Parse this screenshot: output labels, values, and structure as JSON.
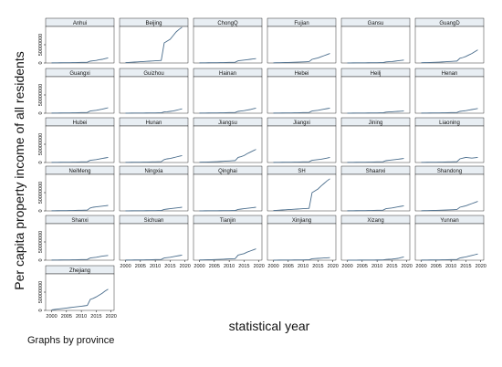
{
  "chart_data": {
    "type": "line",
    "title": "",
    "xlabel": "statistical year",
    "ylabel": "Per capita property income of all residents",
    "note": "Graphs by province",
    "xlim": [
      1998,
      2021
    ],
    "ylim": [
      0,
      100000000
    ],
    "x_ticks": [
      2000,
      2005,
      2010,
      2015,
      2020
    ],
    "y_ticks": [
      0,
      50000000
    ],
    "line_color": "#4a6d8c",
    "header_color": "#e8eef3",
    "x": [
      2000,
      2001,
      2002,
      2003,
      2004,
      2005,
      2006,
      2007,
      2008,
      2009,
      2010,
      2011,
      2012,
      2013,
      2014,
      2015,
      2016,
      2017,
      2018,
      2019
    ],
    "panels": [
      {
        "name": "Anhui",
        "values": [
          300000,
          400000,
          500000,
          600000,
          700000,
          800000,
          900000,
          1000000,
          1200000,
          1400000,
          1600000,
          1800000,
          2000000,
          5000000,
          6000000,
          7000000,
          9000000,
          10000000,
          12000000,
          14000000
        ]
      },
      {
        "name": "Beijing",
        "values": [
          1000000,
          1500000,
          2000000,
          2500000,
          3000000,
          3500000,
          4000000,
          4500000,
          5000000,
          5500000,
          6000000,
          6500000,
          7000000,
          55000000,
          60000000,
          65000000,
          75000000,
          85000000,
          92000000,
          98000000
        ]
      },
      {
        "name": "ChongQ",
        "values": [
          300000,
          400000,
          500000,
          600000,
          700000,
          800000,
          900000,
          1000000,
          1200000,
          1400000,
          1600000,
          1800000,
          2000000,
          6000000,
          7000000,
          8000000,
          9000000,
          10000000,
          11000000,
          12000000
        ]
      },
      {
        "name": "Fujian",
        "values": [
          500000,
          700000,
          900000,
          1100000,
          1300000,
          1500000,
          1800000,
          2100000,
          2400000,
          2700000,
          3000000,
          3400000,
          3800000,
          10000000,
          12000000,
          14000000,
          17000000,
          20000000,
          23000000,
          26000000
        ]
      },
      {
        "name": "Gansu",
        "values": [
          200000,
          250000,
          300000,
          350000,
          400000,
          450000,
          500000,
          600000,
          700000,
          800000,
          900000,
          1000000,
          1100000,
          3000000,
          3500000,
          4000000,
          5000000,
          6000000,
          7000000,
          8000000
        ]
      },
      {
        "name": "GuangD",
        "values": [
          800000,
          1000000,
          1200000,
          1400000,
          1700000,
          2000000,
          2400000,
          2800000,
          3300000,
          3800000,
          4300000,
          4800000,
          5300000,
          13000000,
          15000000,
          18000000,
          22000000,
          26000000,
          31000000,
          36000000
        ]
      },
      {
        "name": "Guangxi",
        "values": [
          300000,
          400000,
          500000,
          600000,
          700000,
          800000,
          900000,
          1000000,
          1200000,
          1400000,
          1600000,
          1800000,
          2000000,
          6000000,
          7000000,
          8000000,
          9500000,
          11000000,
          13000000,
          15000000
        ]
      },
      {
        "name": "Guizhou",
        "values": [
          200000,
          250000,
          300000,
          350000,
          400000,
          450000,
          500000,
          600000,
          700000,
          800000,
          900000,
          1000000,
          1100000,
          3500000,
          4000000,
          5000000,
          6000000,
          8000000,
          10000000,
          12000000
        ]
      },
      {
        "name": "Hainan",
        "values": [
          300000,
          400000,
          500000,
          600000,
          700000,
          800000,
          900000,
          1000000,
          1200000,
          1400000,
          1600000,
          1800000,
          2000000,
          5000000,
          6000000,
          7000000,
          8500000,
          10000000,
          12000000,
          14000000
        ]
      },
      {
        "name": "Hebei",
        "values": [
          300000,
          400000,
          500000,
          600000,
          700000,
          800000,
          900000,
          1000000,
          1200000,
          1400000,
          1600000,
          1800000,
          2000000,
          6000000,
          7000000,
          8000000,
          9500000,
          11000000,
          12500000,
          14000000
        ]
      },
      {
        "name": "Heilj",
        "values": [
          200000,
          250000,
          300000,
          350000,
          400000,
          450000,
          500000,
          600000,
          700000,
          800000,
          900000,
          1000000,
          1100000,
          3000000,
          3500000,
          4000000,
          4500000,
          5000000,
          5500000,
          6000000
        ]
      },
      {
        "name": "Henan",
        "values": [
          300000,
          400000,
          500000,
          600000,
          700000,
          800000,
          900000,
          1000000,
          1200000,
          1400000,
          1600000,
          1800000,
          2000000,
          5000000,
          6000000,
          7000000,
          8500000,
          10000000,
          11500000,
          13000000
        ]
      },
      {
        "name": "Hubei",
        "values": [
          300000,
          400000,
          500000,
          600000,
          700000,
          800000,
          900000,
          1000000,
          1200000,
          1400000,
          1600000,
          1800000,
          2000000,
          6000000,
          7000000,
          8000000,
          9500000,
          11000000,
          12500000,
          14000000
        ]
      },
      {
        "name": "Hunan",
        "values": [
          400000,
          500000,
          600000,
          700000,
          800000,
          900000,
          1000000,
          1200000,
          1400000,
          1600000,
          1800000,
          2000000,
          2300000,
          8000000,
          10000000,
          11000000,
          13000000,
          15000000,
          17000000,
          19000000
        ]
      },
      {
        "name": "Jiangsu",
        "values": [
          800000,
          1000000,
          1200000,
          1400000,
          1700000,
          2000000,
          2400000,
          2800000,
          3300000,
          3800000,
          4300000,
          4800000,
          5300000,
          14000000,
          16000000,
          19000000,
          24000000,
          28000000,
          32000000,
          36000000
        ]
      },
      {
        "name": "Jiangxi",
        "values": [
          300000,
          400000,
          500000,
          600000,
          700000,
          800000,
          900000,
          1000000,
          1200000,
          1400000,
          1600000,
          1800000,
          2000000,
          6000000,
          7000000,
          8000000,
          9000000,
          10500000,
          12000000,
          14000000
        ]
      },
      {
        "name": "Jining",
        "values": [
          300000,
          400000,
          500000,
          600000,
          700000,
          800000,
          900000,
          1000000,
          1200000,
          1400000,
          1600000,
          1800000,
          2000000,
          5000000,
          6000000,
          7000000,
          8000000,
          9000000,
          10000000,
          11000000
        ]
      },
      {
        "name": "Liaoning",
        "values": [
          400000,
          500000,
          600000,
          700000,
          800000,
          900000,
          1000000,
          1200000,
          1400000,
          1600000,
          1800000,
          2000000,
          2300000,
          10000000,
          12000000,
          14000000,
          13000000,
          12000000,
          13000000,
          14000000
        ]
      },
      {
        "name": "NeiMeng",
        "values": [
          400000,
          500000,
          600000,
          700000,
          800000,
          900000,
          1000000,
          1200000,
          1400000,
          1600000,
          1800000,
          2000000,
          2300000,
          8000000,
          10000000,
          11000000,
          12000000,
          13000000,
          14000000,
          15000000
        ]
      },
      {
        "name": "Ningxia",
        "values": [
          200000,
          250000,
          300000,
          350000,
          400000,
          450000,
          500000,
          600000,
          700000,
          800000,
          900000,
          1000000,
          1100000,
          4000000,
          5000000,
          6000000,
          7000000,
          8000000,
          9000000,
          10000000
        ]
      },
      {
        "name": "Qinghai",
        "values": [
          200000,
          250000,
          300000,
          350000,
          400000,
          450000,
          500000,
          600000,
          700000,
          800000,
          900000,
          1000000,
          1100000,
          4000000,
          5000000,
          6000000,
          7000000,
          8000000,
          9000000,
          10000000
        ]
      },
      {
        "name": "SH",
        "values": [
          1000000,
          1500000,
          2000000,
          2500000,
          3000000,
          3500000,
          4000000,
          4500000,
          5000000,
          5500000,
          6000000,
          6500000,
          7000000,
          50000000,
          55000000,
          60000000,
          68000000,
          75000000,
          82000000,
          88000000
        ]
      },
      {
        "name": "Shaanxi",
        "values": [
          300000,
          400000,
          500000,
          600000,
          700000,
          800000,
          900000,
          1000000,
          1200000,
          1400000,
          1600000,
          1800000,
          2000000,
          6000000,
          7000000,
          8000000,
          9500000,
          11000000,
          12500000,
          14000000
        ]
      },
      {
        "name": "Shandong",
        "values": [
          500000,
          700000,
          900000,
          1100000,
          1300000,
          1500000,
          1800000,
          2100000,
          2400000,
          2700000,
          3000000,
          3400000,
          3800000,
          10000000,
          12000000,
          14000000,
          17000000,
          20000000,
          23000000,
          26000000
        ]
      },
      {
        "name": "Shanxi",
        "values": [
          300000,
          400000,
          500000,
          600000,
          700000,
          800000,
          900000,
          1000000,
          1200000,
          1400000,
          1600000,
          1800000,
          2000000,
          6000000,
          7000000,
          8000000,
          9500000,
          11000000,
          12000000,
          13000000
        ]
      },
      {
        "name": "Sichuan",
        "values": [
          300000,
          400000,
          500000,
          600000,
          700000,
          800000,
          900000,
          1000000,
          1200000,
          1400000,
          1600000,
          1800000,
          2000000,
          6000000,
          7000000,
          8000000,
          9500000,
          11000000,
          12500000,
          14000000
        ]
      },
      {
        "name": "Tianjin",
        "values": [
          700000,
          900000,
          1100000,
          1300000,
          1500000,
          1700000,
          2000000,
          2300000,
          2700000,
          3100000,
          3500000,
          3900000,
          4300000,
          14000000,
          16000000,
          18000000,
          22000000,
          25000000,
          28000000,
          31000000
        ]
      },
      {
        "name": "Xinjiang",
        "values": [
          200000,
          250000,
          300000,
          350000,
          400000,
          450000,
          500000,
          600000,
          700000,
          800000,
          900000,
          1000000,
          1100000,
          4000000,
          4500000,
          5000000,
          5500000,
          6000000,
          6500000,
          7000000
        ]
      },
      {
        "name": "Xizang",
        "values": [
          100000,
          150000,
          200000,
          250000,
          300000,
          350000,
          400000,
          450000,
          500000,
          550000,
          600000,
          650000,
          700000,
          2000000,
          2500000,
          3000000,
          4000000,
          5000000,
          7000000,
          9000000
        ]
      },
      {
        "name": "Yunnan",
        "values": [
          300000,
          400000,
          500000,
          600000,
          700000,
          800000,
          900000,
          1000000,
          1200000,
          1400000,
          1600000,
          1800000,
          2000000,
          6000000,
          7500000,
          9000000,
          11000000,
          13000000,
          15000000,
          17000000
        ]
      },
      {
        "name": "Zhejiang",
        "values": [
          1500000,
          2500000,
          3500000,
          4500000,
          5500000,
          6500000,
          7500000,
          8500000,
          9500000,
          10500000,
          11500000,
          12500000,
          13500000,
          30000000,
          33000000,
          37000000,
          42000000,
          47000000,
          53000000,
          58000000
        ]
      }
    ]
  }
}
